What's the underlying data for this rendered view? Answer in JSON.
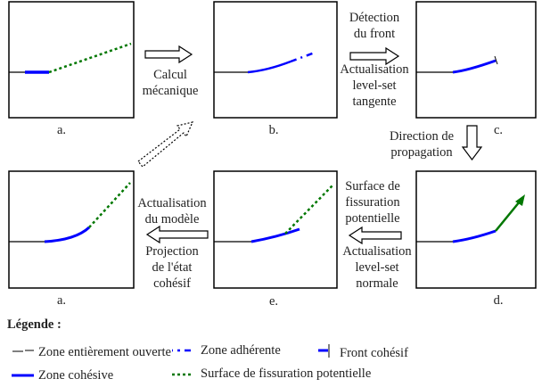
{
  "panels": {
    "top_a": "a.",
    "top_b": "b.",
    "top_c": "c.",
    "bot_a": "a.",
    "bot_e": "e.",
    "bot_d": "d."
  },
  "steps": {
    "calcul": [
      "Calcul",
      "mécanique"
    ],
    "detection": [
      "Détection",
      "du front"
    ],
    "tangente": [
      "Actualisation",
      "level-set",
      "tangente"
    ],
    "direction": [
      "Direction de",
      "propagation"
    ],
    "surface": [
      "Surface de",
      "fissuration",
      "potentielle"
    ],
    "normale": [
      "Actualisation",
      "level-set",
      "normale"
    ],
    "modele": [
      "Actualisation",
      "du modèle"
    ],
    "projection": [
      "Projection",
      "de l'état",
      "cohésif"
    ]
  },
  "legend": {
    "title": "Légende :",
    "items": [
      "Zone entièrement ouverte",
      "Zone adhérente",
      "Front cohésif",
      "Zone cohésive",
      "Surface de fissuration potentielle"
    ]
  },
  "colors": {
    "cohesive": "#0000ff",
    "potential": "#007700",
    "open": "#000000"
  }
}
